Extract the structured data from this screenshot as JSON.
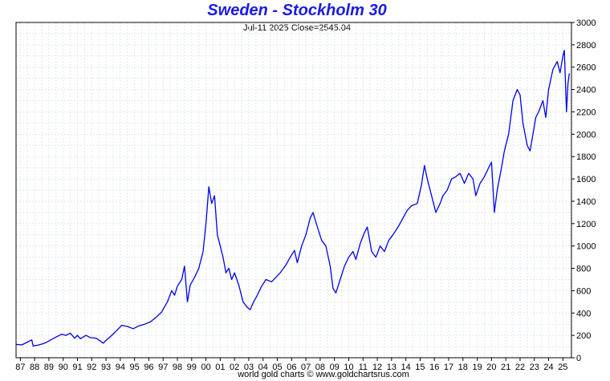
{
  "chart_data": {
    "type": "line",
    "title": "Sweden - Stockholm 30",
    "subtitle": "Jul-11  2025   Close=2545.04",
    "footer": "world gold charts © www.goldchartsrus.com",
    "xlabel": "",
    "ylabel": "",
    "ylim": [
      0,
      3000
    ],
    "yticks": [
      0,
      200,
      400,
      600,
      800,
      1000,
      1200,
      1400,
      1600,
      1800,
      2000,
      2200,
      2400,
      2600,
      2800,
      3000
    ],
    "xlim": [
      1986.7,
      2025.6
    ],
    "xticks": [
      {
        "year": 1987,
        "label": "87"
      },
      {
        "year": 1988,
        "label": "88"
      },
      {
        "year": 1989,
        "label": "89"
      },
      {
        "year": 1990,
        "label": "90"
      },
      {
        "year": 1991,
        "label": "91"
      },
      {
        "year": 1992,
        "label": "92"
      },
      {
        "year": 1993,
        "label": "93"
      },
      {
        "year": 1994,
        "label": "94"
      },
      {
        "year": 1995,
        "label": "95"
      },
      {
        "year": 1996,
        "label": "96"
      },
      {
        "year": 1997,
        "label": "97"
      },
      {
        "year": 1998,
        "label": "98"
      },
      {
        "year": 1999,
        "label": "99"
      },
      {
        "year": 2000,
        "label": "00"
      },
      {
        "year": 2001,
        "label": "01"
      },
      {
        "year": 2002,
        "label": "02"
      },
      {
        "year": 2003,
        "label": "03"
      },
      {
        "year": 2004,
        "label": "04"
      },
      {
        "year": 2005,
        "label": "05"
      },
      {
        "year": 2006,
        "label": "06"
      },
      {
        "year": 2007,
        "label": "07"
      },
      {
        "year": 2008,
        "label": "08"
      },
      {
        "year": 2009,
        "label": "09"
      },
      {
        "year": 2010,
        "label": "10"
      },
      {
        "year": 2011,
        "label": "11"
      },
      {
        "year": 2012,
        "label": "12"
      },
      {
        "year": 2013,
        "label": "13"
      },
      {
        "year": 2014,
        "label": "14"
      },
      {
        "year": 2015,
        "label": "15"
      },
      {
        "year": 2016,
        "label": "16"
      },
      {
        "year": 2017,
        "label": "17"
      },
      {
        "year": 2018,
        "label": "18"
      },
      {
        "year": 2019,
        "label": "19"
      },
      {
        "year": 2020,
        "label": "20"
      },
      {
        "year": 2021,
        "label": "21"
      },
      {
        "year": 2022,
        "label": "22"
      },
      {
        "year": 2023,
        "label": "23"
      },
      {
        "year": 2024,
        "label": "24"
      },
      {
        "year": 2025,
        "label": "25"
      }
    ],
    "grid": true,
    "y_axis_side": "right",
    "series": [
      {
        "color": "#0000ee",
        "points": [
          [
            1986.7,
            120
          ],
          [
            1987.1,
            115
          ],
          [
            1987.5,
            140
          ],
          [
            1987.8,
            160
          ],
          [
            1987.9,
            105
          ],
          [
            1988.3,
            115
          ],
          [
            1988.7,
            130
          ],
          [
            1989.0,
            150
          ],
          [
            1989.5,
            185
          ],
          [
            1989.9,
            210
          ],
          [
            1990.2,
            200
          ],
          [
            1990.5,
            220
          ],
          [
            1990.8,
            175
          ],
          [
            1991.0,
            200
          ],
          [
            1991.2,
            170
          ],
          [
            1991.6,
            200
          ],
          [
            1991.9,
            180
          ],
          [
            1992.3,
            175
          ],
          [
            1992.6,
            150
          ],
          [
            1992.8,
            130
          ],
          [
            1993.0,
            155
          ],
          [
            1993.4,
            200
          ],
          [
            1993.8,
            250
          ],
          [
            1994.1,
            290
          ],
          [
            1994.5,
            280
          ],
          [
            1994.9,
            260
          ],
          [
            1995.3,
            285
          ],
          [
            1995.7,
            300
          ],
          [
            1996.1,
            320
          ],
          [
            1996.5,
            360
          ],
          [
            1996.9,
            410
          ],
          [
            1997.3,
            500
          ],
          [
            1997.6,
            600
          ],
          [
            1997.8,
            560
          ],
          [
            1998.0,
            640
          ],
          [
            1998.3,
            700
          ],
          [
            1998.5,
            820
          ],
          [
            1998.7,
            500
          ],
          [
            1998.9,
            650
          ],
          [
            1999.2,
            720
          ],
          [
            1999.5,
            800
          ],
          [
            1999.8,
            950
          ],
          [
            2000.0,
            1200
          ],
          [
            2000.2,
            1530
          ],
          [
            2000.4,
            1380
          ],
          [
            2000.6,
            1450
          ],
          [
            2000.8,
            1100
          ],
          [
            2001.0,
            1000
          ],
          [
            2001.2,
            900
          ],
          [
            2001.4,
            760
          ],
          [
            2001.6,
            800
          ],
          [
            2001.8,
            700
          ],
          [
            2002.0,
            760
          ],
          [
            2002.3,
            650
          ],
          [
            2002.6,
            500
          ],
          [
            2002.9,
            450
          ],
          [
            2003.1,
            430
          ],
          [
            2003.3,
            490
          ],
          [
            2003.6,
            560
          ],
          [
            2003.9,
            640
          ],
          [
            2004.2,
            700
          ],
          [
            2004.6,
            680
          ],
          [
            2004.9,
            720
          ],
          [
            2005.2,
            760
          ],
          [
            2005.6,
            830
          ],
          [
            2005.9,
            900
          ],
          [
            2006.2,
            960
          ],
          [
            2006.4,
            850
          ],
          [
            2006.7,
            1000
          ],
          [
            2007.0,
            1100
          ],
          [
            2007.3,
            1250
          ],
          [
            2007.5,
            1300
          ],
          [
            2007.8,
            1170
          ],
          [
            2008.1,
            1050
          ],
          [
            2008.4,
            1000
          ],
          [
            2008.7,
            820
          ],
          [
            2008.9,
            620
          ],
          [
            2009.1,
            580
          ],
          [
            2009.4,
            700
          ],
          [
            2009.7,
            820
          ],
          [
            2010.0,
            900
          ],
          [
            2010.3,
            950
          ],
          [
            2010.5,
            880
          ],
          [
            2010.8,
            1020
          ],
          [
            2011.1,
            1120
          ],
          [
            2011.3,
            1170
          ],
          [
            2011.6,
            950
          ],
          [
            2011.9,
            900
          ],
          [
            2012.2,
            1000
          ],
          [
            2012.5,
            950
          ],
          [
            2012.8,
            1050
          ],
          [
            2013.1,
            1100
          ],
          [
            2013.5,
            1180
          ],
          [
            2013.8,
            1250
          ],
          [
            2014.1,
            1320
          ],
          [
            2014.4,
            1360
          ],
          [
            2014.8,
            1380
          ],
          [
            2015.1,
            1550
          ],
          [
            2015.3,
            1720
          ],
          [
            2015.5,
            1600
          ],
          [
            2015.8,
            1450
          ],
          [
            2016.1,
            1300
          ],
          [
            2016.4,
            1380
          ],
          [
            2016.6,
            1450
          ],
          [
            2016.9,
            1500
          ],
          [
            2017.2,
            1600
          ],
          [
            2017.5,
            1620
          ],
          [
            2017.8,
            1650
          ],
          [
            2018.1,
            1560
          ],
          [
            2018.4,
            1650
          ],
          [
            2018.7,
            1600
          ],
          [
            2018.9,
            1450
          ],
          [
            2019.2,
            1560
          ],
          [
            2019.5,
            1620
          ],
          [
            2019.8,
            1700
          ],
          [
            2020.0,
            1750
          ],
          [
            2020.2,
            1300
          ],
          [
            2020.4,
            1500
          ],
          [
            2020.7,
            1700
          ],
          [
            2020.9,
            1850
          ],
          [
            2021.2,
            2000
          ],
          [
            2021.5,
            2300
          ],
          [
            2021.8,
            2400
          ],
          [
            2022.0,
            2350
          ],
          [
            2022.2,
            2100
          ],
          [
            2022.5,
            1900
          ],
          [
            2022.7,
            1850
          ],
          [
            2022.9,
            2000
          ],
          [
            2023.1,
            2150
          ],
          [
            2023.3,
            2200
          ],
          [
            2023.6,
            2300
          ],
          [
            2023.8,
            2150
          ],
          [
            2024.0,
            2400
          ],
          [
            2024.3,
            2580
          ],
          [
            2024.6,
            2650
          ],
          [
            2024.8,
            2550
          ],
          [
            2025.0,
            2700
          ],
          [
            2025.1,
            2750
          ],
          [
            2025.25,
            2200
          ],
          [
            2025.35,
            2450
          ],
          [
            2025.45,
            2545
          ]
        ]
      }
    ]
  }
}
